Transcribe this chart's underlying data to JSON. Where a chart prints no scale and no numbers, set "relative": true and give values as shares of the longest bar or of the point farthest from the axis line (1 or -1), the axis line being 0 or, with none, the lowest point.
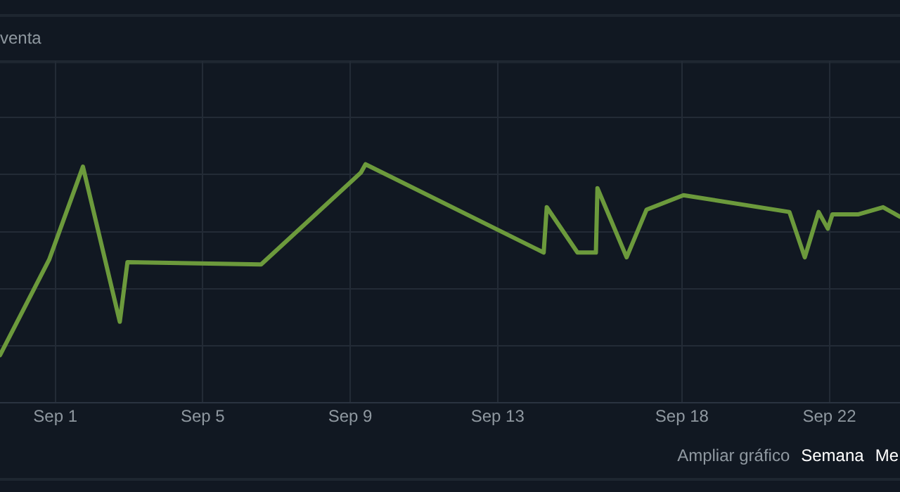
{
  "chart_data": {
    "type": "line",
    "title": "venta",
    "relative": true,
    "grid": true,
    "marker": "none",
    "line_style": "solid",
    "xlim": [
      "--08-30T12:00",
      "--09-23T22:00"
    ],
    "xticks": [
      {
        "value": "--09-01",
        "label": "Sep 1"
      },
      {
        "value": "--09-05",
        "label": "Sep 5"
      },
      {
        "value": "--09-09",
        "label": "Sep 9"
      },
      {
        "value": "--09-13",
        "label": "Sep 13"
      },
      {
        "value": "--09-18",
        "label": "Sep 18"
      },
      {
        "value": "--09-22",
        "label": "Sep 22"
      }
    ],
    "series": [
      {
        "color": "#6c9a3c",
        "x": [
          "--08-30T12:00",
          "--08-31T20:00",
          "--09-01T18:00",
          "--09-02T18:00",
          "--09-02T23:00",
          "--09-06T14:00",
          "--09-09T07:00",
          "--09-09T10:00",
          "--09-14T06:00",
          "--09-14T08:00",
          "--09-15T04:00",
          "--09-15T16:00",
          "--09-15T17:00",
          "--09-16T12:00",
          "--09-17T01:00",
          "--09-18T01:00",
          "--09-20T22:00",
          "--09-21T08:00",
          "--09-21T17:00",
          "--09-21T23:00",
          "--09-22T02:00",
          "--09-22T19:00",
          "--09-23T11:00",
          "--09-23T22:00"
        ],
        "values": [
          0.2,
          0.6,
          0.99,
          0.34,
          0.59,
          0.58,
          0.965,
          1,
          0.63,
          0.82,
          0.63,
          0.63,
          0.9,
          0.61,
          0.81,
          0.87,
          0.8,
          0.61,
          0.8,
          0.73,
          0.79,
          0.79,
          0.82,
          0.78
        ]
      }
    ],
    "annotations": [
      "Ampliar gráfico",
      "Semana",
      "Me"
    ]
  }
}
